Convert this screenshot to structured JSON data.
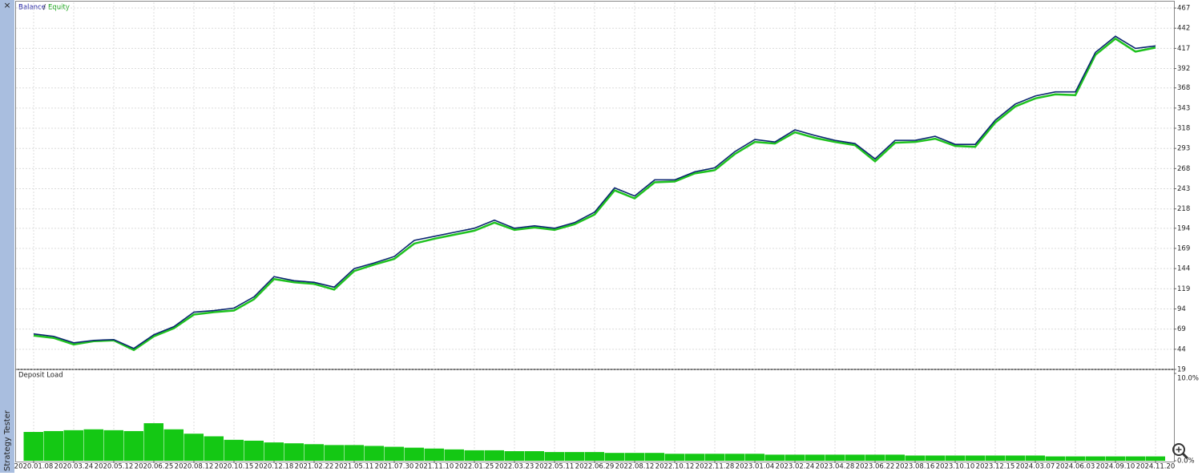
{
  "sidebar": {
    "close": "×",
    "label": "Strategy Tester"
  },
  "legend_separator": "/",
  "chart_data": [
    {
      "type": "line",
      "categories": [
        "2020.01.08",
        null,
        "2020.03.24",
        null,
        "2020.05.12",
        null,
        "2020.06.25",
        null,
        "2020.08.12",
        null,
        "2020.10.15",
        null,
        "2020.12.18",
        null,
        "2021.02.22",
        null,
        "2021.05.11",
        null,
        "2021.07.30",
        null,
        "2021.11.10",
        null,
        "2022.01.25",
        null,
        "2022.03.23",
        null,
        "2022.05.11",
        null,
        "2022.06.29",
        null,
        "2022.08.12",
        null,
        "2022.10.12",
        null,
        "2022.11.28",
        null,
        "2023.01.04",
        null,
        "2023.02.24",
        null,
        "2023.04.28",
        null,
        "2023.06.22",
        null,
        "2023.08.16",
        null,
        "2023.10.10",
        null,
        "2023.12.15",
        null,
        "2024.03.07",
        null,
        "2024.06.03",
        null,
        "2024.09.10",
        null,
        "2024.11.20"
      ],
      "series": [
        {
          "name": "Equity",
          "color": "#1fc21f",
          "values": [
            61,
            58,
            50,
            54,
            55,
            43,
            60,
            70,
            87,
            90,
            92,
            106,
            131,
            127,
            125,
            118,
            141,
            149,
            156,
            175,
            181,
            186,
            191,
            201,
            192,
            195,
            192,
            199,
            211,
            241,
            231,
            251,
            252,
            262,
            266,
            286,
            301,
            299,
            313,
            306,
            301,
            297,
            277,
            300,
            301,
            305,
            296,
            295,
            325,
            345,
            355,
            360,
            359,
            409,
            429,
            413,
            418
          ]
        },
        {
          "name": "Balance",
          "color": "#0a2470",
          "values": [
            63,
            60,
            52,
            55,
            56,
            45,
            62,
            72,
            90,
            92,
            95,
            109,
            134,
            129,
            127,
            121,
            144,
            151,
            159,
            179,
            184,
            189,
            194,
            204,
            194,
            197,
            194,
            201,
            214,
            244,
            234,
            254,
            254,
            264,
            269,
            289,
            304,
            301,
            316,
            309,
            303,
            299,
            280,
            303,
            303,
            308,
            298,
            298,
            328,
            348,
            358,
            363,
            363,
            412,
            432,
            417,
            420
          ]
        }
      ],
      "ylim": [
        19,
        474
      ],
      "yticks": [
        19,
        44,
        69,
        94,
        119,
        144,
        169,
        194,
        218,
        243,
        268,
        293,
        318,
        343,
        368,
        392,
        417,
        442,
        467
      ],
      "grid": true
    },
    {
      "type": "bar",
      "title": "Deposit Load",
      "color": "#14c814",
      "values": [
        3.3,
        3.4,
        3.5,
        3.6,
        3.5,
        3.4,
        4.3,
        3.6,
        3.1,
        2.8,
        2.4,
        2.3,
        2.1,
        2.0,
        1.9,
        1.8,
        1.8,
        1.7,
        1.6,
        1.5,
        1.4,
        1.3,
        1.2,
        1.2,
        1.1,
        1.1,
        1.0,
        1.0,
        1.0,
        0.9,
        0.9,
        0.9,
        0.8,
        0.8,
        0.8,
        0.8,
        0.8,
        0.7,
        0.7,
        0.7,
        0.7,
        0.7,
        0.7,
        0.7,
        0.6,
        0.6,
        0.6,
        0.6,
        0.6,
        0.6,
        0.6,
        0.5,
        0.5,
        0.5,
        0.5,
        0.5,
        0.5
      ],
      "ylim": [
        0,
        10
      ],
      "yticks": [
        {
          "value": 0,
          "label": "0.0%"
        },
        {
          "value": 10,
          "label": "10.0%"
        }
      ],
      "grid": true
    }
  ]
}
